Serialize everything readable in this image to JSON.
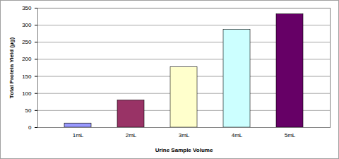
{
  "chart_data": {
    "type": "bar",
    "categories": [
      "1mL",
      "2mL",
      "3mL",
      "4mL",
      "5mL"
    ],
    "values": [
      12,
      80,
      177,
      287,
      332
    ],
    "colors": [
      "#9999ff",
      "#993366",
      "#ffffcc",
      "#ccffff",
      "#660066"
    ],
    "x_label": "Urine Sample Volume",
    "y_label": "Total Protein Yield (µg)",
    "ylim": [
      0,
      350
    ],
    "yticks": [
      0,
      50,
      100,
      150,
      200,
      250,
      300,
      350
    ],
    "grid": true
  }
}
